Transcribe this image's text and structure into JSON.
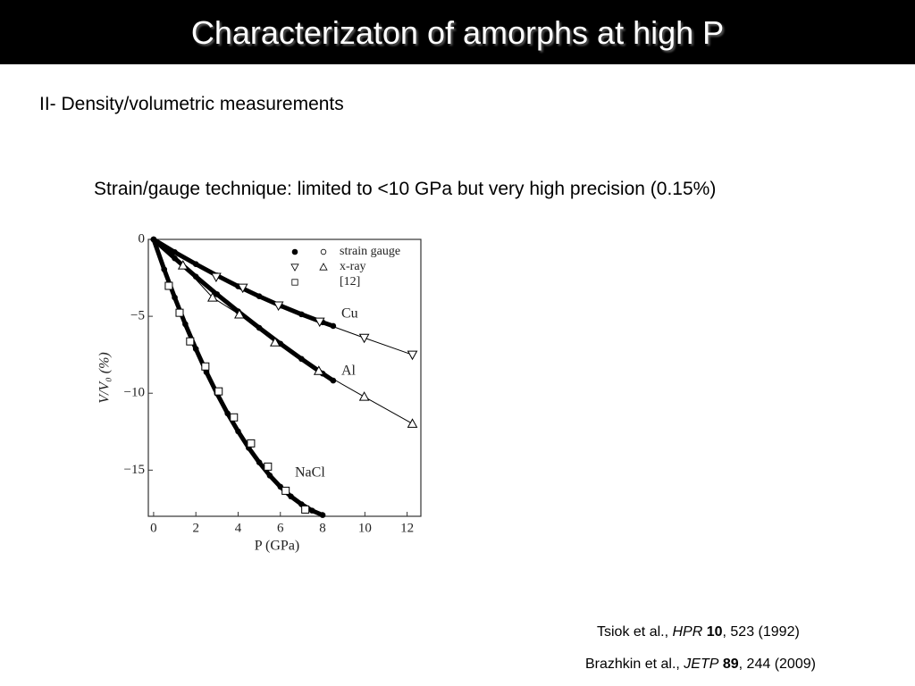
{
  "header": {
    "title": "Characterizaton of amorphs at high P"
  },
  "subtitle": "II- Density/volumetric measurements",
  "text": "Strain/gauge technique: limited to <10 GPa but very high precision (0.15%)",
  "chart_data": {
    "type": "line",
    "xlabel": "P (GPa)",
    "ylabel": "V/V₀ (%)",
    "xlim": [
      -0.25,
      12.65
    ],
    "ylim": [
      -18,
      0
    ],
    "xticks": [
      0,
      2,
      4,
      6,
      8,
      10,
      12
    ],
    "yticks": [
      0,
      {
        "value": -5,
        "label": "−5"
      },
      {
        "value": -10,
        "label": "−10"
      },
      {
        "value": -15,
        "label": "−15"
      }
    ],
    "legend": [
      "strain gauge",
      "x-ray",
      "[12]"
    ],
    "series": [
      {
        "name": "Cu",
        "color": "#000",
        "marker": "dot",
        "x": [
          0,
          1,
          2,
          3,
          4,
          5,
          6,
          7,
          8,
          8.5
        ],
        "values": [
          0,
          -0.83,
          -1.61,
          -2.35,
          -3.05,
          -3.7,
          -4.31,
          -4.87,
          -5.39,
          -5.63
        ]
      },
      {
        "color": "#000",
        "marker": "triangle-down",
        "x": [
          2.96,
          4.22,
          5.91,
          7.86,
          9.97,
          12.25
        ],
        "values": [
          -2.44,
          -3.14,
          -4.3,
          -5.35,
          -6.4,
          -7.5
        ]
      },
      {
        "name": "Al",
        "color": "#000",
        "marker": "dot",
        "x": [
          0,
          1,
          2,
          3,
          4,
          5,
          6,
          7,
          8,
          8.5
        ],
        "values": [
          0,
          -1.23,
          -2.42,
          -3.57,
          -4.68,
          -5.75,
          -6.78,
          -7.77,
          -8.72,
          -9.18
        ]
      },
      {
        "color": "#000",
        "marker": "triangle-up",
        "x": [
          1.39,
          2.79,
          4.06,
          5.75,
          7.82,
          9.97,
          12.25
        ],
        "values": [
          -1.69,
          -3.78,
          -4.88,
          -6.69,
          -8.55,
          -10.23,
          -11.98
        ]
      },
      {
        "name": "NaCl",
        "color": "#000",
        "marker": "dot",
        "x": [
          0,
          0.5,
          1,
          1.5,
          2,
          2.5,
          3,
          3.5,
          4,
          4.5,
          5,
          5.5,
          6,
          6.5,
          7,
          7.5,
          8
        ],
        "values": [
          0,
          -1.95,
          -3.78,
          -5.51,
          -7.12,
          -8.63,
          -10.02,
          -11.31,
          -12.48,
          -13.55,
          -14.5,
          -15.35,
          -16.08,
          -16.71,
          -17.22,
          -17.63,
          -17.92
        ]
      },
      {
        "color": "#000",
        "marker": "square",
        "x": [
          0.72,
          1.23,
          1.73,
          2.45,
          3.08,
          3.8,
          4.61,
          5.41,
          6.25,
          7.18
        ],
        "values": [
          -3.02,
          -4.77,
          -6.63,
          -8.26,
          -9.88,
          -11.57,
          -13.26,
          -14.77,
          -16.34,
          -17.56
        ]
      }
    ]
  },
  "references": [
    {
      "authors": "Tsiok et al., ",
      "journal": "HPR",
      "volume": "10",
      "rest": ", 523 (1992)"
    },
    {
      "authors": "Brazhkin et al., ",
      "journal": "JETP",
      "volume": "89",
      "rest": ", 244 (2009)"
    }
  ]
}
